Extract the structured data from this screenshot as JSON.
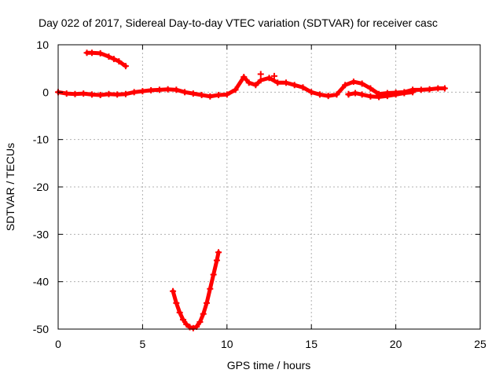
{
  "chart_data": {
    "type": "scatter",
    "title": "Day 022 of 2017, Sidereal Day-to-day VTEC variation (SDTVAR) for receiver casc",
    "xlabel": "GPS time / hours",
    "ylabel": "SDTVAR / TECUs",
    "xlim": [
      0,
      25
    ],
    "ylim": [
      -50,
      10
    ],
    "x_ticks": [
      0,
      5,
      10,
      15,
      20,
      25
    ],
    "y_ticks": [
      -50,
      -40,
      -30,
      -20,
      -10,
      0,
      10
    ],
    "grid": true,
    "marker": "+",
    "color": "#ff0000",
    "series": [
      {
        "name": "main",
        "x": [
          0,
          0.5,
          1,
          1.5,
          2,
          2.5,
          3,
          3.5,
          4,
          4.5,
          5,
          5.5,
          6,
          6.5,
          7,
          7.5,
          8,
          8.5,
          9,
          9.5,
          10,
          10.5,
          11,
          11.3,
          11.7,
          12,
          12.5,
          13,
          13.5,
          14,
          14.5,
          15,
          15.5,
          16,
          16.5,
          17,
          17.5,
          18,
          18.5,
          19,
          19.5,
          20,
          20.5,
          21,
          21.5,
          22,
          22.5,
          22.9
        ],
        "y": [
          0,
          -0.3,
          -0.4,
          -0.3,
          -0.5,
          -0.6,
          -0.4,
          -0.5,
          -0.4,
          0,
          0.2,
          0.4,
          0.5,
          0.6,
          0.5,
          0,
          -0.3,
          -0.6,
          -0.9,
          -0.6,
          -0.5,
          0.5,
          3.2,
          2.0,
          1.5,
          2.5,
          3.0,
          2.0,
          2.0,
          1.5,
          1.0,
          0,
          -0.5,
          -0.8,
          -0.5,
          1.5,
          2.2,
          1.8,
          0.8,
          -0.4,
          -0.2,
          -0.1,
          0,
          0.5,
          0.5,
          0.6,
          0.8,
          0.8
        ]
      },
      {
        "name": "branch-low",
        "x": [
          17.2,
          17.6,
          18,
          18.5,
          19,
          19.5,
          20,
          20.5,
          21
        ],
        "y": [
          -0.5,
          -0.2,
          -0.5,
          -0.9,
          -1.0,
          -0.8,
          -0.5,
          -0.2,
          0
        ]
      },
      {
        "name": "early-segment",
        "x": [
          1.7,
          2.0,
          2.5,
          3.0,
          3.3,
          3.6,
          4.0
        ],
        "y": [
          8.3,
          8.3,
          8.2,
          7.5,
          7.0,
          6.5,
          5.5
        ]
      },
      {
        "name": "v-dip",
        "x": [
          6.8,
          7.0,
          7.2,
          7.4,
          7.6,
          7.8,
          8.0,
          8.2,
          8.4,
          8.6,
          8.8,
          9.0,
          9.2,
          9.4,
          9.5
        ],
        "y": [
          -42,
          -44.5,
          -46.5,
          -48,
          -49,
          -49.6,
          -49.8,
          -49.5,
          -48.5,
          -46.8,
          -44.5,
          -41.5,
          -38.5,
          -35.5,
          -33.8
        ]
      }
    ],
    "markers": [
      {
        "x": 12.0,
        "y": 3.8
      },
      {
        "x": 12.8,
        "y": 3.4
      },
      {
        "x": 17.2,
        "y": -0.4
      },
      {
        "x": 19.0,
        "y": -1.0
      }
    ]
  }
}
